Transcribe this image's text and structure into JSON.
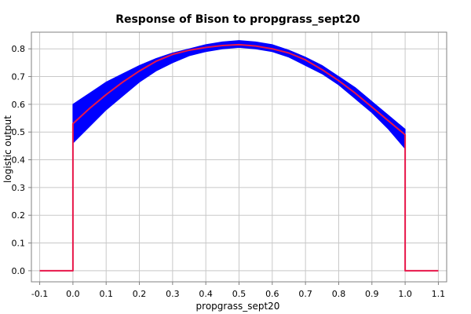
{
  "chart_data": {
    "type": "area",
    "title": "Response of Bison to propgrass_sept20",
    "xlabel": "propgrass_sept20",
    "ylabel": "logistic output",
    "xlim": [
      -0.125,
      1.125
    ],
    "ylim": [
      -0.04,
      0.86
    ],
    "xticks": [
      "-0.1",
      "0.0",
      "0.1",
      "0.2",
      "0.3",
      "0.4",
      "0.5",
      "0.6",
      "0.7",
      "0.8",
      "0.9",
      "1.0",
      "1.1"
    ],
    "yticks": [
      "0.0",
      "0.1",
      "0.2",
      "0.3",
      "0.4",
      "0.5",
      "0.6",
      "0.7",
      "0.8"
    ],
    "grid": true,
    "series": [
      {
        "role": "band",
        "color": "#0000ff",
        "x": [
          0.0,
          0.05,
          0.1,
          0.15,
          0.2,
          0.25,
          0.3,
          0.35,
          0.4,
          0.45,
          0.5,
          0.55,
          0.6,
          0.65,
          0.7,
          0.75,
          0.8,
          0.85,
          0.9,
          0.95,
          1.0
        ],
        "upper": [
          0.6,
          0.64,
          0.68,
          0.71,
          0.74,
          0.765,
          0.785,
          0.8,
          0.815,
          0.825,
          0.83,
          0.825,
          0.815,
          0.795,
          0.77,
          0.74,
          0.7,
          0.66,
          0.61,
          0.56,
          0.51
        ],
        "lower": [
          0.46,
          0.52,
          0.58,
          0.63,
          0.68,
          0.72,
          0.75,
          0.775,
          0.79,
          0.8,
          0.805,
          0.8,
          0.79,
          0.77,
          0.74,
          0.71,
          0.67,
          0.62,
          0.57,
          0.51,
          0.44
        ]
      },
      {
        "role": "mean",
        "color": "#e8174a",
        "x": [
          -0.1,
          0.0,
          0.0,
          0.05,
          0.1,
          0.15,
          0.2,
          0.25,
          0.3,
          0.35,
          0.4,
          0.45,
          0.5,
          0.55,
          0.6,
          0.65,
          0.7,
          0.75,
          0.8,
          0.85,
          0.9,
          0.95,
          1.0,
          1.0,
          1.1
        ],
        "y": [
          0.0,
          0.0,
          0.53,
          0.585,
          0.635,
          0.68,
          0.72,
          0.755,
          0.78,
          0.795,
          0.805,
          0.812,
          0.815,
          0.81,
          0.8,
          0.785,
          0.76,
          0.725,
          0.685,
          0.64,
          0.59,
          0.54,
          0.49,
          0.0,
          0.0
        ]
      }
    ]
  }
}
